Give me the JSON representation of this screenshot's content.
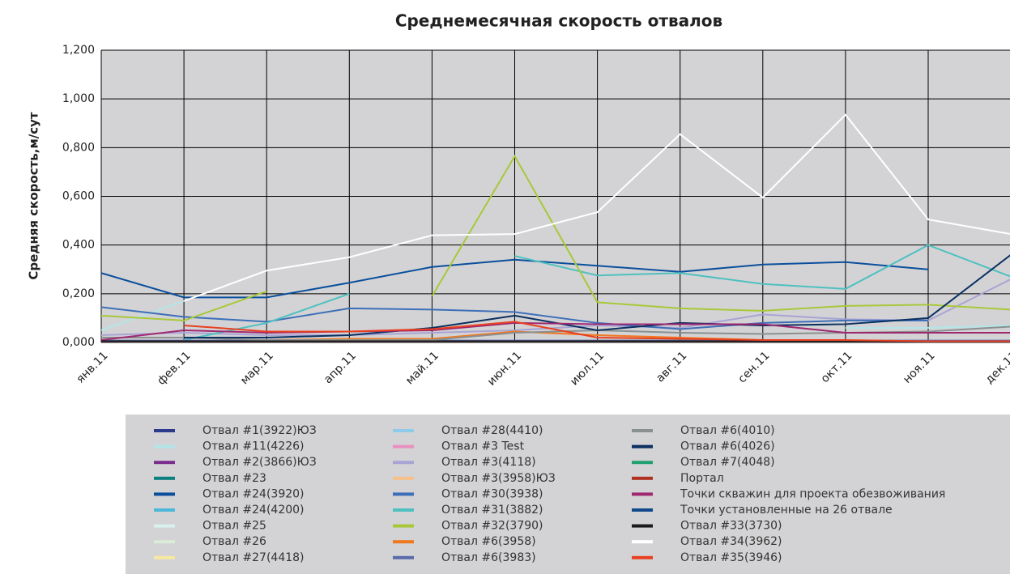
{
  "chart_data": {
    "type": "line",
    "title": "Среднемесячная скорость отвалов",
    "y_label": "Средняя скорость,м/сут",
    "categories": [
      "янв.11",
      "фев.11",
      "мар.11",
      "апр.11",
      "май.11",
      "июн.11",
      "июл.11",
      "авг.11",
      "сен.11",
      "окт.11",
      "ноя.11",
      "дек.11"
    ],
    "ylim": [
      0,
      1.2
    ],
    "yticks": [
      {
        "value": 0,
        "label": "0,000"
      },
      {
        "value": 0.2,
        "label": "0,200"
      },
      {
        "value": 0.4,
        "label": "0,400"
      },
      {
        "value": 0.6,
        "label": "0,600"
      },
      {
        "value": 0.8,
        "label": "0,800"
      },
      {
        "value": 1.0,
        "label": "1,000"
      },
      {
        "value": 1.2,
        "label": "1,200"
      }
    ],
    "grid": true,
    "legend": "bottom",
    "series": [
      {
        "name": "Отвал #1(3922)ЮЗ",
        "color": "#2b3a8a",
        "values": [
          null,
          0.002,
          0.002,
          0.002,
          0.002,
          0.003,
          0.003,
          0.002,
          0.002,
          0.002,
          0.002,
          0.002
        ]
      },
      {
        "name": "Отвал #11(4226)",
        "color": "#b3e5e8",
        "values": [
          0.05,
          0.17,
          null,
          null,
          null,
          null,
          null,
          null,
          null,
          0.06,
          0.06,
          0.07
        ]
      },
      {
        "name": "Отвал #2(3866)ЮЗ",
        "color": "#7b2d8e",
        "values": [
          null,
          0.003,
          0.003,
          0.003,
          0.003,
          0.004,
          0.003,
          0.003,
          0.003,
          0.003,
          0.003,
          0.003
        ]
      },
      {
        "name": "Отвал #23",
        "color": "#0a8080",
        "values": [
          0,
          0,
          0,
          0,
          0,
          0,
          0,
          0,
          0,
          0,
          0,
          0
        ]
      },
      {
        "name": "Отвал #24(3920)",
        "color": "#0b4f9c",
        "values": [
          0.285,
          0.185,
          0.185,
          0.245,
          0.31,
          0.34,
          0.315,
          0.29,
          0.32,
          0.33,
          0.3,
          null
        ]
      },
      {
        "name": "Отвал #24(4200)",
        "color": "#4cb8d8",
        "values": [
          0.005,
          0.005,
          0.005,
          0.005,
          0.005,
          0.005,
          0.005,
          0.005,
          0.005,
          0.005,
          0.005,
          0.005
        ]
      },
      {
        "name": "Отвал #25",
        "color": "#d8f0ee",
        "values": [
          0.003,
          0.003,
          0.003,
          0.003,
          0.003,
          0.003,
          0.003,
          0.003,
          0.003,
          0.003,
          0.003,
          0.003
        ]
      },
      {
        "name": "Отвал #26",
        "color": "#d8ecd8",
        "values": [
          0.002,
          0.002,
          0.002,
          0.002,
          0.002,
          0.002,
          0.002,
          0.002,
          0.002,
          0.002,
          0.002,
          0.002
        ]
      },
      {
        "name": "Отвал #27(4418)",
        "color": "#f7e8a0",
        "values": [
          0.001,
          0.001,
          0.001,
          0.001,
          0.001,
          0.001,
          0.001,
          0.001,
          0.001,
          0.001,
          0.001,
          0.001
        ]
      },
      {
        "name": "Отвал #28(4410)",
        "color": "#8ecbea",
        "values": [
          0.004,
          0.004,
          0.004,
          0.004,
          0.004,
          0.004,
          0.004,
          0.004,
          0.004,
          0.004,
          0.004,
          0.004
        ]
      },
      {
        "name": "Отвал #3 Test",
        "color": "#e890c0",
        "values": [
          0.001,
          0.001,
          0.001,
          0.001,
          0.001,
          0.001,
          0.001,
          0.001,
          0.001,
          0.001,
          0.001,
          0.001
        ]
      },
      {
        "name": "Отвал #3(4118)",
        "color": "#a8a4d4",
        "values": [
          0.03,
          0.04,
          0.03,
          0.03,
          0.04,
          0.05,
          0.07,
          0.06,
          0.115,
          0.095,
          0.09,
          0.26
        ]
      },
      {
        "name": "Отвал #3(3958)ЮЗ",
        "color": "#f7c08a",
        "values": [
          0.006,
          0.006,
          0.006,
          0.006,
          0.006,
          0.006,
          0.006,
          0.006,
          0.006,
          0.006,
          0.006,
          0.006
        ]
      },
      {
        "name": "Отвал #30(3938)",
        "color": "#3d6fb8",
        "values": [
          0.145,
          0.105,
          0.085,
          0.14,
          0.135,
          0.125,
          0.08,
          0.055,
          0.08,
          0.09,
          0.09,
          null
        ]
      },
      {
        "name": "Отвал #31(3882)",
        "color": "#4fc0c0",
        "values": [
          null,
          0.01,
          0.08,
          0.2,
          null,
          0.355,
          0.275,
          0.285,
          0.24,
          0.22,
          0.4,
          0.27
        ]
      },
      {
        "name": "Отвал #32(3790)",
        "color": "#a8c83a",
        "values": [
          0.11,
          0.09,
          0.21,
          null,
          0.19,
          0.765,
          0.165,
          0.14,
          0.13,
          0.15,
          0.155,
          0.135
        ]
      },
      {
        "name": "Отвал #6(3958)",
        "color": "#f07820",
        "values": [
          null,
          0.005,
          0.01,
          0.015,
          0.015,
          0.045,
          0.03,
          0.02,
          0.01,
          0.005,
          0.005,
          0.005
        ]
      },
      {
        "name": "Отвал #6(3983)",
        "color": "#5a6aaa",
        "values": [
          0.008,
          0.008,
          0.008,
          0.008,
          0.008,
          0.008,
          0.008,
          0.008,
          0.008,
          0.008,
          0.008,
          0.008
        ]
      },
      {
        "name": "Отвал #6(4010)",
        "color": "#8a9090",
        "values": [
          0.02,
          0.02,
          0.01,
          0.01,
          0.01,
          0.04,
          0.05,
          0.04,
          0.035,
          0.04,
          0.045,
          0.065
        ]
      },
      {
        "name": "Отвал #6(4026)",
        "color": "#0a3060",
        "values": [
          null,
          0.02,
          0.02,
          0.03,
          0.06,
          0.11,
          0.05,
          0.08,
          0.07,
          0.075,
          0.1,
          0.36
        ]
      },
      {
        "name": "Отвал #7(4048)",
        "color": "#20a070",
        "values": [
          0.002,
          0.002,
          0.002,
          0.002,
          0.002,
          0.002,
          0.002,
          0.002,
          0.002,
          0.002,
          0.002,
          0.002
        ]
      },
      {
        "name": "Портал",
        "color": "#b03020",
        "values": [
          0.003,
          0.003,
          0.003,
          0.003,
          0.003,
          0.003,
          0.003,
          0.003,
          0.003,
          0.003,
          0.003,
          0.003
        ]
      },
      {
        "name": "Точки скважин для проекта обезвоживания",
        "color": "#a02870",
        "values": [
          0.01,
          0.05,
          0.04,
          0.045,
          0.05,
          0.08,
          0.075,
          0.075,
          0.075,
          0.04,
          0.04,
          0.04
        ]
      },
      {
        "name": "Точки установленные на 26 отвале",
        "color": "#104a8a",
        "values": [
          0.004,
          0.004,
          0.004,
          0.004,
          0.004,
          0.004,
          0.004,
          0.004,
          0.004,
          0.004,
          0.004,
          0.004
        ]
      },
      {
        "name": "Отвал #33(3730)",
        "color": "#1a1a1a",
        "values": [
          0.005,
          0.005,
          0.005,
          0.005,
          0.005,
          0.005,
          0.005,
          0.005,
          0.005,
          0.005,
          0.005,
          0.005
        ]
      },
      {
        "name": "Отвал #34(3962)",
        "color": "#ffffff",
        "values": [
          null,
          0.17,
          0.295,
          0.35,
          0.44,
          0.445,
          0.535,
          0.855,
          0.595,
          0.935,
          0.505,
          0.445
        ]
      },
      {
        "name": "Отвал #35(3946)",
        "color": "#e84020",
        "values": [
          null,
          0.07,
          0.045,
          0.045,
          0.055,
          0.085,
          0.02,
          0.015,
          0.01,
          0.01,
          0.005,
          0.005
        ]
      }
    ]
  }
}
